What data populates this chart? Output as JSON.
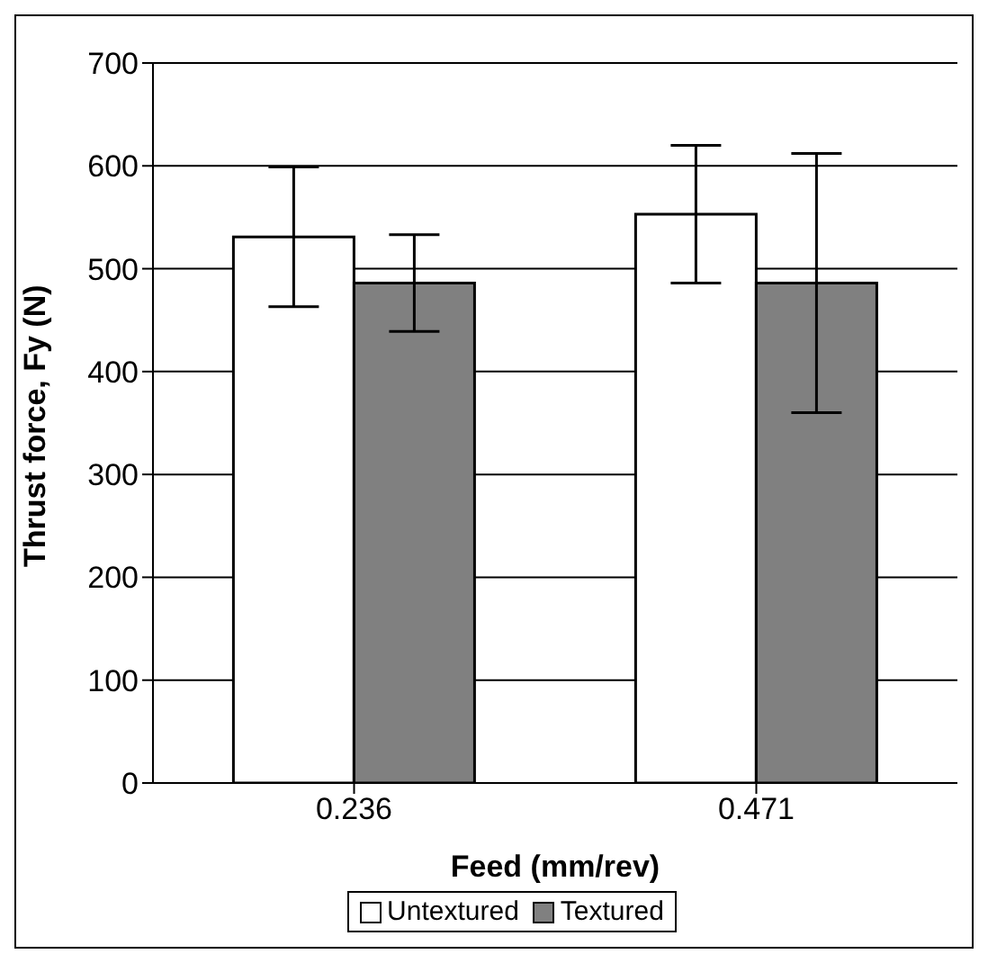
{
  "chart_data": {
    "type": "bar",
    "xlabel": "Feed (mm/rev)",
    "ylabel": "Thrust force, Fy (N)",
    "categories": [
      "0.236",
      "0.471"
    ],
    "series": [
      {
        "name": "Untextured",
        "color": "#ffffff",
        "values": [
          531,
          553
        ],
        "errors": [
          68,
          67
        ]
      },
      {
        "name": "Textured",
        "color": "#808080",
        "values": [
          486,
          486
        ],
        "errors": [
          47,
          126
        ]
      }
    ],
    "ylim": [
      0,
      700
    ],
    "yticks": [
      0,
      100,
      200,
      300,
      400,
      500,
      600,
      700
    ],
    "grid": "y",
    "legend": "bottom"
  }
}
